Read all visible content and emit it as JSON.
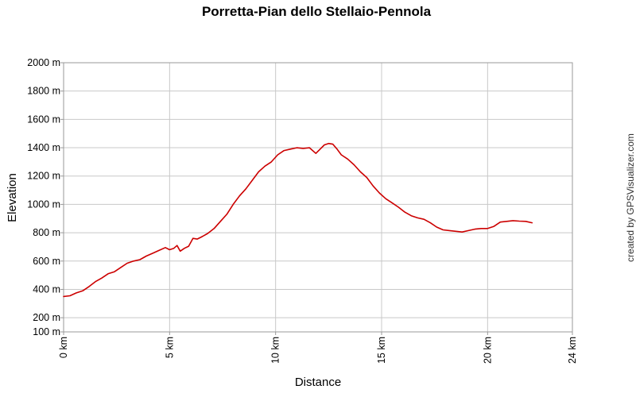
{
  "chart_data": {
    "type": "line",
    "title": "Porretta-Pian dello Stellaio-Pennola",
    "xlabel": "Distance",
    "ylabel": "Elevation",
    "credit": "created by GPSVisualizer.com",
    "grid": true,
    "legend": "none",
    "xlim": [
      0,
      24
    ],
    "ylim": [
      100,
      2000
    ],
    "x_ticks": [
      {
        "value": 0,
        "label": "0 km"
      },
      {
        "value": 5,
        "label": "5 km"
      },
      {
        "value": 10,
        "label": "10 km"
      },
      {
        "value": 15,
        "label": "15 km"
      },
      {
        "value": 20,
        "label": "20 km"
      },
      {
        "value": 24,
        "label": "24 km"
      }
    ],
    "y_ticks": [
      {
        "value": 100,
        "label": "100 m"
      },
      {
        "value": 200,
        "label": "200 m"
      },
      {
        "value": 400,
        "label": "400 m"
      },
      {
        "value": 600,
        "label": "600 m"
      },
      {
        "value": 800,
        "label": "800 m"
      },
      {
        "value": 1000,
        "label": "1000 m"
      },
      {
        "value": 1200,
        "label": "1200 m"
      },
      {
        "value": 1400,
        "label": "1400 m"
      },
      {
        "value": 1600,
        "label": "1600 m"
      },
      {
        "value": 1800,
        "label": "1800 m"
      },
      {
        "value": 2000,
        "label": "2000 m"
      }
    ],
    "series": [
      {
        "color": "#cc0000",
        "x": [
          0,
          0.3,
          0.6,
          0.9,
          1.2,
          1.5,
          1.8,
          2.1,
          2.4,
          2.7,
          3.0,
          3.3,
          3.6,
          3.9,
          4.2,
          4.5,
          4.8,
          5.0,
          5.2,
          5.35,
          5.5,
          5.7,
          5.9,
          6.1,
          6.3,
          6.5,
          6.8,
          7.1,
          7.4,
          7.7,
          8.0,
          8.3,
          8.6,
          8.9,
          9.2,
          9.5,
          9.8,
          10.1,
          10.4,
          10.7,
          11.0,
          11.3,
          11.6,
          11.9,
          12.1,
          12.3,
          12.5,
          12.7,
          12.9,
          13.1,
          13.4,
          13.7,
          14.0,
          14.3,
          14.6,
          14.9,
          15.2,
          15.5,
          15.8,
          16.1,
          16.4,
          16.7,
          17.0,
          17.3,
          17.6,
          17.9,
          18.2,
          18.5,
          18.8,
          19.1,
          19.4,
          19.7,
          20.0,
          20.3,
          20.6,
          20.9,
          21.2,
          21.5,
          21.8,
          22.1
        ],
        "y": [
          350,
          355,
          375,
          390,
          420,
          455,
          480,
          510,
          525,
          555,
          585,
          600,
          610,
          635,
          655,
          675,
          695,
          680,
          690,
          710,
          670,
          690,
          705,
          760,
          755,
          770,
          795,
          830,
          880,
          930,
          1000,
          1060,
          1110,
          1170,
          1230,
          1270,
          1300,
          1350,
          1380,
          1390,
          1400,
          1395,
          1400,
          1360,
          1390,
          1420,
          1430,
          1425,
          1390,
          1350,
          1320,
          1280,
          1230,
          1190,
          1130,
          1080,
          1040,
          1010,
          980,
          945,
          920,
          905,
          895,
          870,
          840,
          820,
          815,
          810,
          805,
          815,
          825,
          830,
          830,
          845,
          875,
          880,
          885,
          882,
          880,
          870
        ]
      }
    ]
  }
}
